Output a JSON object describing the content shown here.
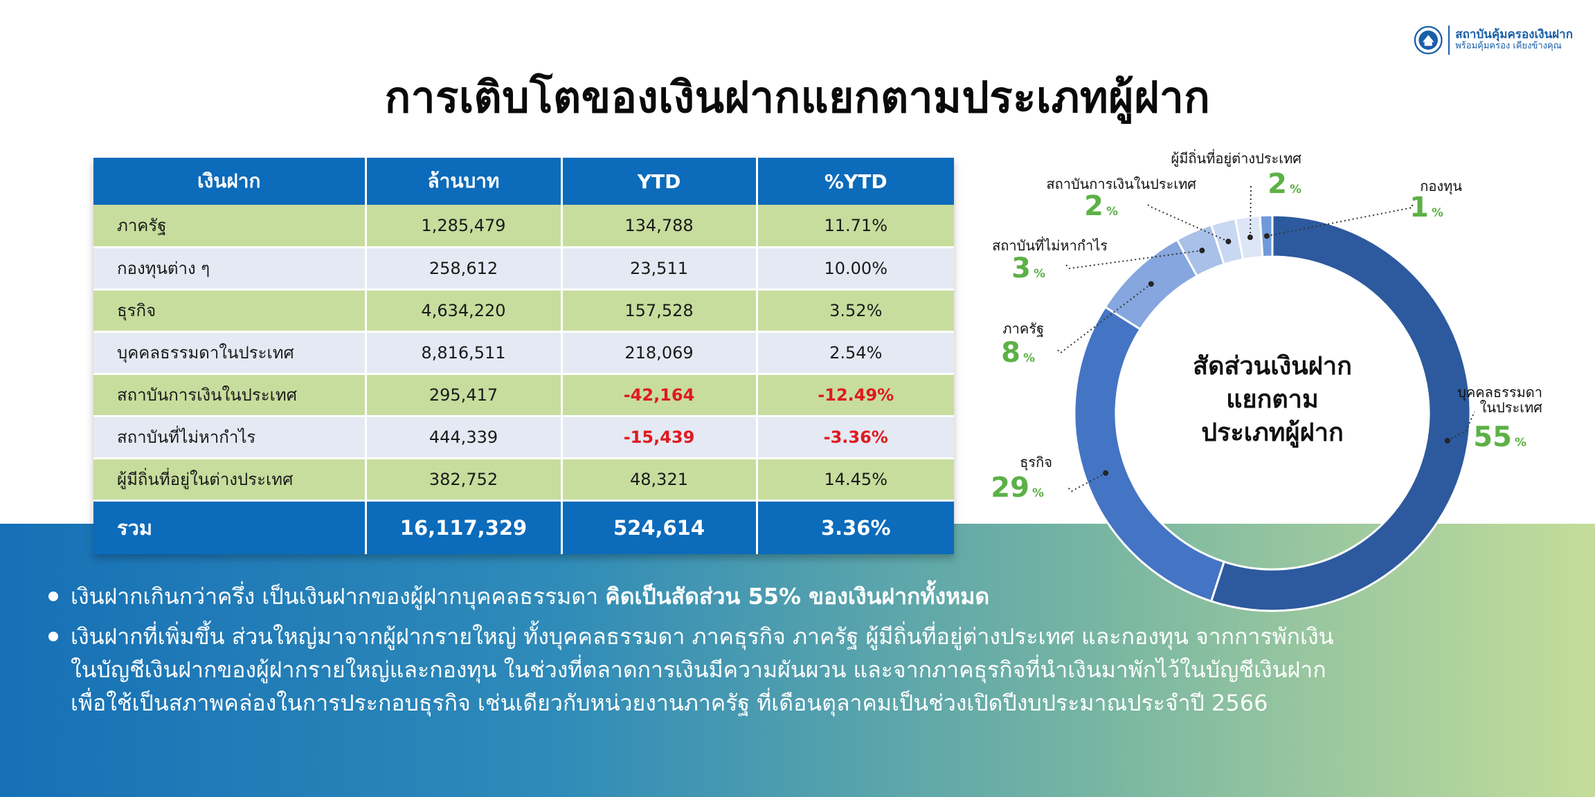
{
  "logo": {
    "line1": "สถาบันคุ้มครองเงินฝาก",
    "line2": "พร้อมคุ้มครอง เคียงข้างคุณ"
  },
  "title": "การเติบโตของเงินฝากแยกตามประเภทผู้ฝาก",
  "table": {
    "headers": [
      "เงินฝาก",
      "ล้านบาท",
      "YTD",
      "%YTD"
    ],
    "rows": [
      {
        "name": "ภาครัฐ",
        "amount": "1,285,479",
        "ytd": "134,788",
        "pct": "11.71%"
      },
      {
        "name": "กองทุนต่าง ๆ",
        "amount": "258,612",
        "ytd": "23,511",
        "pct": "10.00%"
      },
      {
        "name": "ธุรกิจ",
        "amount": "4,634,220",
        "ytd": "157,528",
        "pct": "3.52%"
      },
      {
        "name": "บุคคลธรรมดาในประเทศ",
        "amount": "8,816,511",
        "ytd": "218,069",
        "pct": "2.54%"
      },
      {
        "name": "สถาบันการเงินในประเทศ",
        "amount": "295,417",
        "ytd": "-42,164",
        "pct": "-12.49%"
      },
      {
        "name": "สถาบันที่ไม่หากำไร",
        "amount": "444,339",
        "ytd": "-15,439",
        "pct": "-3.36%"
      },
      {
        "name": "ผู้มีถิ่นที่อยู่ในต่างประเทศ",
        "amount": "382,752",
        "ytd": "48,321",
        "pct": "14.45%"
      }
    ],
    "total": {
      "name": "รวม",
      "amount": "16,117,329",
      "ytd": "524,614",
      "pct": "3.36%"
    }
  },
  "colors": {
    "table_header": "#0c6bba",
    "row_green": "#c7dd9d",
    "row_gray": "#e4e9f3",
    "negative": "#e0191e",
    "label_green": "#5cb146"
  },
  "chart_data": {
    "type": "pie",
    "title": "สัดส่วนเงินฝาก แยกตาม ประเภทผู้ฝาก",
    "title_lines": [
      "สัดส่วนเงินฝาก",
      "แยกตาม",
      "ประเภทผู้ฝาก"
    ],
    "values_unit": "%",
    "slices": [
      {
        "label": "บุคคลธรรมดา ในประเทศ",
        "label_lines": [
          "บุคคลธรรมดา",
          "ในประเทศ"
        ],
        "value": 55,
        "color": "#2d5a9e"
      },
      {
        "label": "ธุรกิจ",
        "label_lines": [
          "ธุรกิจ"
        ],
        "value": 29,
        "color": "#4474c4"
      },
      {
        "label": "ภาครัฐ",
        "label_lines": [
          "ภาครัฐ"
        ],
        "value": 8,
        "color": "#85a6de"
      },
      {
        "label": "สถาบันที่ไม่หากำไร",
        "label_lines": [
          "สถาบันที่ไม่หากำไร"
        ],
        "value": 3,
        "color": "#a9c1e9"
      },
      {
        "label": "สถาบันการเงินในประเทศ",
        "label_lines": [
          "สถาบันการเงินในประเทศ"
        ],
        "value": 2,
        "color": "#c9d8f2"
      },
      {
        "label": "ผู้มีถิ่นที่อยู่ต่างประเทศ",
        "label_lines": [
          "ผู้มีถิ่นที่อยู่ต่างประเทศ"
        ],
        "value": 2,
        "color": "#dce6f7"
      },
      {
        "label": "กองทุน",
        "label_lines": [
          "กองทุน"
        ],
        "value": 1,
        "color": "#6f9ad8"
      }
    ]
  },
  "bullets": {
    "b1_text": "เงินฝากเกินกว่าครึ่ง เป็นเงินฝากของผู้ฝากบุคคลธรรมดา ",
    "b1_bold": "คิดเป็นสัดส่วน 55% ของเงินฝากทั้งหมด",
    "b2_line1": "เงินฝากที่เพิ่มขึ้น ส่วนใหญ่มาจากผู้ฝากรายใหญ่ ทั้งบุคคลธรรมดา ภาคธุรกิจ ภาครัฐ ผู้มีถิ่นที่อยู่ต่างประเทศ และกองทุน จากการพักเงิน",
    "b2_line2": "ในบัญชีเงินฝากของผู้ฝากรายใหญ่และกองทุน ในช่วงที่ตลาดการเงินมีความผันผวน และจากภาคธุรกิจที่นำเงินมาพักไว้ในบัญชีเงินฝาก",
    "b2_line3": "เพื่อใช้เป็นสภาพคล่องในการประกอบธุรกิจ เช่นเดียวกับหน่วยงานภาครัฐ ที่เดือนตุลาคมเป็นช่วงเปิดปีงบประมาณประจำปี 2566"
  }
}
